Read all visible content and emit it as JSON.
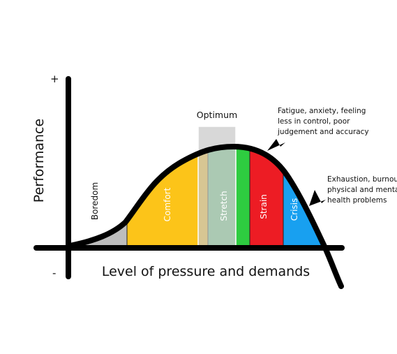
{
  "axes": {
    "y_title": "Performance",
    "x_title": "Level of pressure and demands",
    "plus_sign": "+",
    "minus_sign": "-"
  },
  "optimum": {
    "label": "Optimum",
    "color": "#c8c8c8"
  },
  "zones": [
    {
      "label": "Boredom",
      "color": "#bdbdbd",
      "label_color": "#111111"
    },
    {
      "label": "Comfort",
      "color": "#fcc419",
      "label_color": "#ffffff"
    },
    {
      "label": "Stretch",
      "color": "#6acb84",
      "label_color": "#ffffff"
    },
    {
      "label": "Strain",
      "color": "#ed1c24",
      "label_color": "#ffffff"
    },
    {
      "label": "Crisis",
      "color": "#18a0f0",
      "label_color": "#ffffff"
    }
  ],
  "peak_band_color": "#2ecc40",
  "annotations": [
    {
      "lines": [
        "Fatigue, anxiety, feeling",
        "less in control, poor",
        "judgement and accuracy"
      ]
    },
    {
      "lines": [
        "Exhaustion, burnout,",
        "physical and mental",
        "health problems"
      ]
    }
  ]
}
